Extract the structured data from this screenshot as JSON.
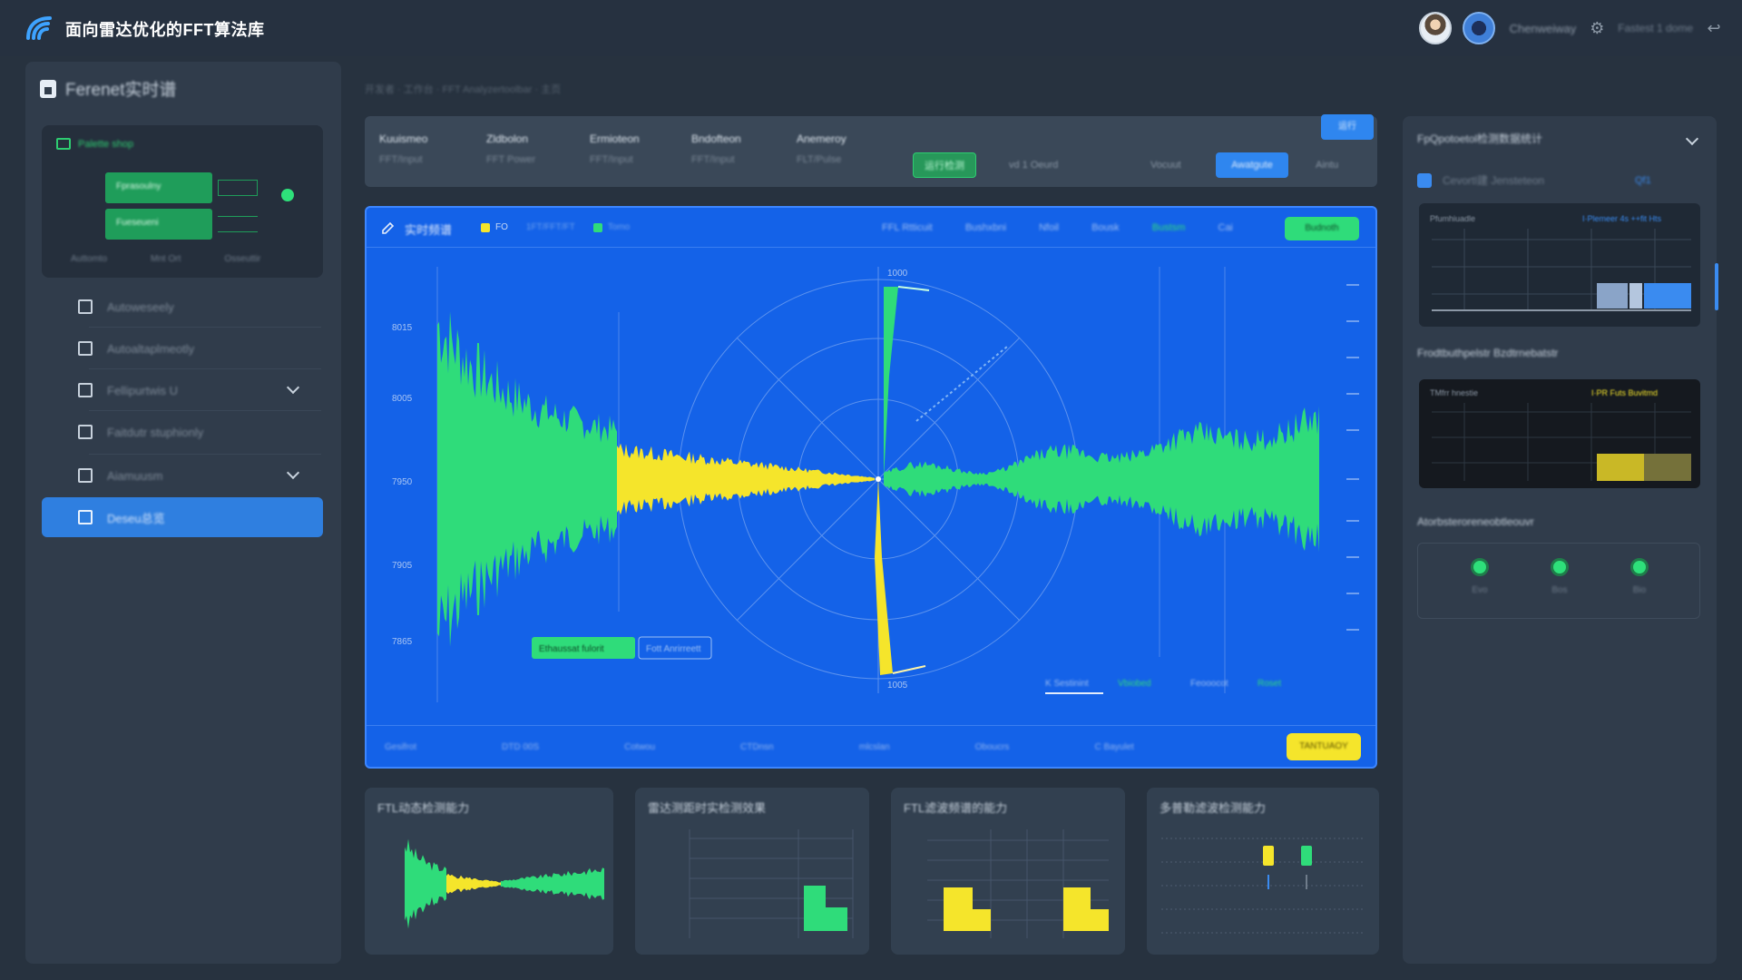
{
  "app": {
    "title": "面向雷达优化的FFT算法库",
    "user_name": "Chenweiway",
    "top_link": "Fastest 1 dome",
    "brand_color": "#2f86ef"
  },
  "sidebar": {
    "title": "Ferenet实时谱",
    "card_label": "Palette shop",
    "card_bar1": "Fprasoulny",
    "card_bar2": "Fueseueni",
    "card_footer": [
      "Auttomto",
      "Mnt Ort",
      "Osseuttir"
    ],
    "items": [
      {
        "label": "Autoweseely",
        "icon": "robot-icon",
        "chevron": false
      },
      {
        "label": "Autoaltaplmeotly",
        "icon": "list-icon",
        "chevron": false
      },
      {
        "label": "Fellipurtwis U",
        "icon": "panel-icon",
        "chevron": true
      },
      {
        "label": "Faitdutr stuphionly",
        "icon": "file-icon",
        "chevron": false
      },
      {
        "label": "Aiamuusm",
        "icon": "drive-icon",
        "chevron": true
      },
      {
        "label": "Deseu总览",
        "icon": "monitor-icon",
        "chevron": false
      }
    ]
  },
  "breadcrumb": "开发者 · 工作台 · FFT Analyzertoolbar · 主页",
  "toolbar": {
    "top_button": "运行",
    "columns": [
      {
        "head": "Kuuismeo",
        "sub": "FFT/Input"
      },
      {
        "head": "Zldbolon",
        "sub": "FFT Power"
      },
      {
        "head": "Ermioteon",
        "sub": "FFT/Input"
      },
      {
        "head": "Bndofteon",
        "sub": "FFT/Input"
      },
      {
        "head": "Anemeroy",
        "sub": "FLT/Pulse"
      }
    ],
    "pill_green": "运行检测",
    "pill_text": "vd 1 Oeurd",
    "pill_plain": "Vocuut",
    "pill_blue": "Awatgute",
    "pill_last": "Aintu"
  },
  "main_panel": {
    "title": "实时频谱",
    "legend": [
      "FO",
      "1FT/FFT/FT",
      "Tomo"
    ],
    "tabs": [
      "FFL Rtticuit",
      "Bushxbni",
      "Nfoil",
      "Bousk",
      "Bustsm",
      "Cai"
    ],
    "green_button": "Budnoth",
    "yellow_button": "TANTUAOY",
    "footer": [
      "Gesifrot",
      "DTD 00S",
      "Cotwou",
      "CTDnsn",
      "mlcslan",
      "Oboucrs",
      "C Bayulet"
    ],
    "y_ticks": [
      "8015",
      "8005",
      "7950",
      "7905",
      "7865"
    ],
    "legend_bottom": [
      "Ethaussat fulorit",
      "Fott Anrirreett"
    ],
    "bottom_tabs": [
      "K Sestinint",
      "Vbiobed",
      "Feooocot",
      "Roset"
    ],
    "polar_top": "1000",
    "polar_bottom": "1005"
  },
  "bottom_cards": [
    {
      "title": "FTL动态检测能力"
    },
    {
      "title": "雷达测距时实检测效果"
    },
    {
      "title": "FTL滤波频谱的能力"
    },
    {
      "title": "多普勒滤波检测能力"
    }
  ],
  "right_panel": {
    "title": "FpQpotoetol检测数据统计",
    "subtitle": "Cevortl建 Jensteteon",
    "sub_right": "Qf1",
    "chart1_label": "Pfumhiuadle",
    "chart1_legend": "I·Plemeer 4s ++fit Hts",
    "section2": "Frodtbuthpelstr Bzdtrnebatstr",
    "chart2_label": "TMfrr hnestie",
    "chart2_legend": "I·PR Futs Buvitmd",
    "section3": "Atorbsteroreneobtleouvr",
    "actions": [
      {
        "label": "Evo",
        "icon": "lock-icon"
      },
      {
        "label": "Bos",
        "icon": "tag-icon"
      },
      {
        "label": "Bio",
        "icon": "check-icon"
      }
    ]
  }
}
